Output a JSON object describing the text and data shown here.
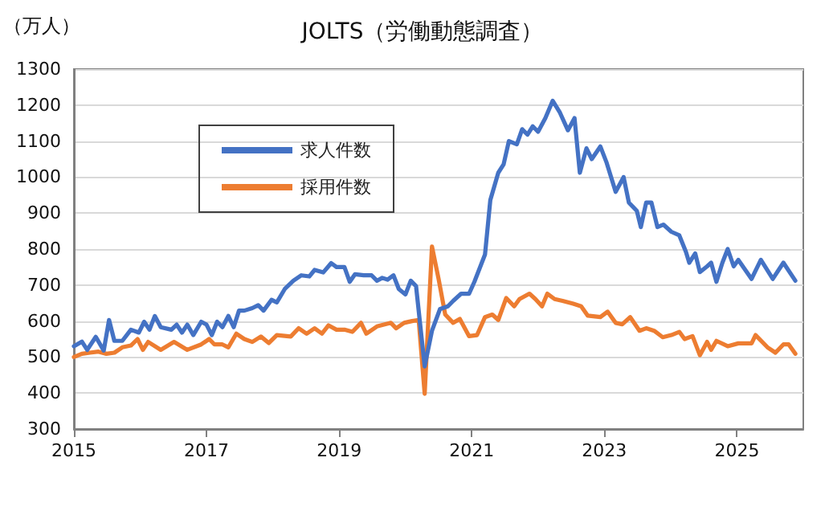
{
  "chart_data": {
    "type": "line",
    "title": "JOLTS（労働動態調査）",
    "ylabel": "（万人）",
    "xlim": [
      2015,
      2026
    ],
    "xticks": [
      2015,
      2017,
      2019,
      2021,
      2023,
      2025
    ],
    "ylim": [
      300,
      1300
    ],
    "yticks": [
      300,
      400,
      500,
      600,
      700,
      800,
      900,
      1000,
      1100,
      1200,
      1300
    ],
    "grid": "y",
    "legend": "top left",
    "marker": "none",
    "line_style": "solid",
    "series": [
      {
        "name": "求人件数",
        "color": "#4472c4",
        "x": [
          2015.0,
          2015.12,
          2015.2,
          2015.33,
          2015.45,
          2015.53,
          2015.61,
          2015.73,
          2015.86,
          2015.98,
          2016.06,
          2016.14,
          2016.22,
          2016.31,
          2016.47,
          2016.55,
          2016.63,
          2016.71,
          2016.8,
          2016.92,
          2017.0,
          2017.08,
          2017.16,
          2017.24,
          2017.33,
          2017.41,
          2017.49,
          2017.57,
          2017.69,
          2017.78,
          2017.86,
          2017.98,
          2018.06,
          2018.18,
          2018.31,
          2018.43,
          2018.55,
          2018.63,
          2018.76,
          2018.88,
          2018.96,
          2019.08,
          2019.16,
          2019.24,
          2019.37,
          2019.49,
          2019.57,
          2019.65,
          2019.73,
          2019.82,
          2019.9,
          2020.0,
          2020.08,
          2020.16,
          2020.29,
          2020.4,
          2020.52,
          2020.64,
          2020.72,
          2020.84,
          2020.96,
          2021.04,
          2021.2,
          2021.28,
          2021.4,
          2021.48,
          2021.56,
          2021.68,
          2021.76,
          2021.84,
          2021.92,
          2022.0,
          2022.11,
          2022.22,
          2022.33,
          2022.45,
          2022.55,
          2022.63,
          2022.73,
          2022.81,
          2022.94,
          2023.03,
          2023.17,
          2023.29,
          2023.37,
          2023.49,
          2023.55,
          2023.63,
          2023.71,
          2023.8,
          2023.89,
          2024.01,
          2024.13,
          2024.23,
          2024.28,
          2024.37,
          2024.44,
          2024.55,
          2024.61,
          2024.69,
          2024.78,
          2024.86,
          2024.95,
          2025.02,
          2025.22,
          2025.36,
          2025.54,
          2025.7,
          2025.88
        ],
        "values": [
          530,
          543,
          520,
          556,
          518,
          603,
          545,
          545,
          576,
          568,
          598,
          576,
          614,
          583,
          576,
          590,
          568,
          590,
          561,
          598,
          590,
          561,
          598,
          583,
          614,
          583,
          629,
          629,
          636,
          644,
          629,
          659,
          652,
          689,
          712,
          727,
          724,
          742,
          735,
          761,
          750,
          750,
          709,
          730,
          727,
          727,
          712,
          720,
          715,
          727,
          689,
          674,
          712,
          697,
          474,
          573,
          633,
          641,
          656,
          676,
          676,
          709,
          785,
          936,
          1012,
          1035,
          1100,
          1091,
          1133,
          1118,
          1141,
          1126,
          1164,
          1212,
          1179,
          1130,
          1164,
          1012,
          1080,
          1050,
          1085,
          1042,
          959,
          1000,
          929,
          906,
          861,
          929,
          929,
          861,
          868,
          848,
          838,
          792,
          762,
          788,
          736,
          752,
          762,
          709,
          762,
          800,
          752,
          770,
          717,
          770,
          717,
          762,
          712
        ]
      },
      {
        "name": "採用件数",
        "color": "#ed7d31",
        "x": [
          2015.0,
          2015.12,
          2015.24,
          2015.37,
          2015.49,
          2015.61,
          2015.73,
          2015.86,
          2015.96,
          2016.04,
          2016.12,
          2016.31,
          2016.51,
          2016.71,
          2016.92,
          2017.04,
          2017.12,
          2017.24,
          2017.33,
          2017.45,
          2017.57,
          2017.69,
          2017.82,
          2017.94,
          2018.06,
          2018.27,
          2018.39,
          2018.51,
          2018.63,
          2018.74,
          2018.84,
          2018.96,
          2019.08,
          2019.2,
          2019.33,
          2019.41,
          2019.57,
          2019.78,
          2019.86,
          2019.98,
          2020.1,
          2020.2,
          2020.29,
          2020.4,
          2020.5,
          2020.6,
          2020.72,
          2020.82,
          2020.96,
          2021.08,
          2021.2,
          2021.31,
          2021.4,
          2021.52,
          2021.64,
          2021.72,
          2021.87,
          2021.96,
          2022.06,
          2022.14,
          2022.25,
          2022.37,
          2022.53,
          2022.65,
          2022.75,
          2022.94,
          2023.05,
          2023.17,
          2023.27,
          2023.39,
          2023.53,
          2023.63,
          2023.75,
          2023.88,
          2024.01,
          2024.13,
          2024.21,
          2024.33,
          2024.44,
          2024.55,
          2024.61,
          2024.69,
          2024.86,
          2025.02,
          2025.22,
          2025.28,
          2025.46,
          2025.58,
          2025.7,
          2025.78,
          2025.88
        ],
        "values": [
          500,
          509,
          512,
          515,
          509,
          512,
          527,
          532,
          550,
          520,
          542,
          520,
          542,
          520,
          535,
          550,
          535,
          535,
          527,
          565,
          550,
          542,
          557,
          539,
          561,
          557,
          580,
          565,
          580,
          565,
          588,
          576,
          576,
          570,
          595,
          565,
          585,
          595,
          580,
          595,
          600,
          603,
          398,
          807,
          717,
          618,
          595,
          606,
          558,
          561,
          611,
          618,
          603,
          664,
          641,
          661,
          676,
          661,
          641,
          676,
          661,
          656,
          648,
          641,
          615,
          611,
          626,
          595,
          591,
          611,
          573,
          580,
          573,
          555,
          561,
          570,
          550,
          558,
          505,
          542,
          520,
          545,
          530,
          538,
          538,
          561,
          527,
          512,
          535,
          535,
          509
        ]
      }
    ]
  }
}
